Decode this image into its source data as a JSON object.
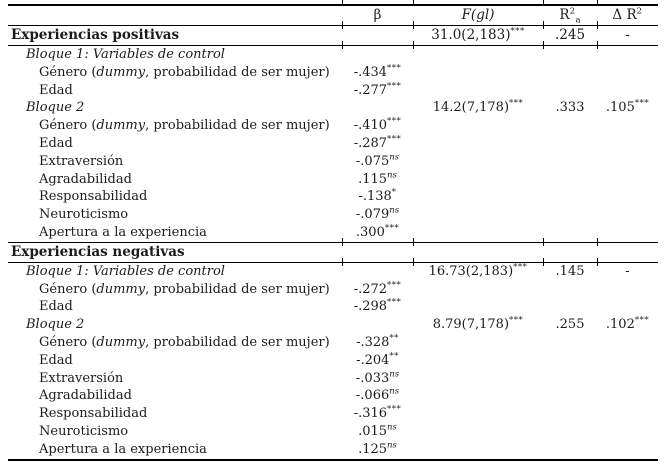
{
  "header": {
    "beta": "β",
    "f": "F(gl)",
    "r2_base": "R",
    "r2_sup": "2",
    "r2_sub": "a",
    "dr2_base": "Δ R",
    "dr2_sup": "2"
  },
  "rows": [
    {
      "type": "section",
      "label_pre": "Experiencias positivas",
      "f": "31.0(2,183)",
      "f_sup": "***",
      "r2": ".245",
      "dr2": "-"
    },
    {
      "type": "block",
      "label_pre": "Bloque 1: Variables de control"
    },
    {
      "type": "var",
      "label_pre": "Género (",
      "label_it": "dummy",
      "label_post": ", probabilidad de ser mujer)",
      "beta": "-.434",
      "beta_sup": "***"
    },
    {
      "type": "var",
      "label_pre": "Edad",
      "beta": "-.277",
      "beta_sup": "***"
    },
    {
      "type": "block",
      "label_pre": "Bloque 2",
      "f": "14.2(7,178)",
      "f_sup": "***",
      "r2": ".333",
      "dr2": ".105",
      "dr2_sup": "***"
    },
    {
      "type": "var",
      "label_pre": "Género (",
      "label_it": "dummy",
      "label_post": ", probabilidad de ser mujer)",
      "beta": "-.410",
      "beta_sup": "***"
    },
    {
      "type": "var",
      "label_pre": "Edad",
      "beta": "-.287",
      "beta_sup": "***"
    },
    {
      "type": "var",
      "label_pre": "Extraversión",
      "beta": "-.075",
      "beta_sup": "ns"
    },
    {
      "type": "var",
      "label_pre": "Agradabilidad",
      "beta": ".115",
      "beta_sup": "ns"
    },
    {
      "type": "var",
      "label_pre": "Responsabilidad",
      "beta": "-.138",
      "beta_sup": "*"
    },
    {
      "type": "var",
      "label_pre": "Neuroticismo",
      "beta": "-.079",
      "beta_sup": "ns"
    },
    {
      "type": "var",
      "label_pre": "Apertura a la experiencia",
      "beta": ".300",
      "beta_sup": "***"
    },
    {
      "type": "section",
      "label_pre": "Experiencias negativas"
    },
    {
      "type": "block",
      "label_pre": "Bloque 1: Variables de control",
      "f": "16.73(2,183)",
      "f_sup": "***",
      "r2": ".145",
      "dr2": "-"
    },
    {
      "type": "var",
      "label_pre": "Género (",
      "label_it": "dummy",
      "label_post": ", probabilidad de ser mujer)",
      "beta": "-.272",
      "beta_sup": "***"
    },
    {
      "type": "var",
      "label_pre": "Edad",
      "beta": "-.298",
      "beta_sup": "***"
    },
    {
      "type": "block",
      "label_pre": "Bloque 2",
      "f": "8.79(7,178)",
      "f_sup": "***",
      "r2": ".255",
      "dr2": ".102",
      "dr2_sup": "***"
    },
    {
      "type": "var",
      "label_pre": "Género (",
      "label_it": "dummy",
      "label_post": ", probabilidad de ser mujer)",
      "beta": "-.328",
      "beta_sup": "**"
    },
    {
      "type": "var",
      "label_pre": "Edad",
      "beta": "-.204",
      "beta_sup": "**"
    },
    {
      "type": "var",
      "label_pre": "Extraversión",
      "beta": "-.033",
      "beta_sup": "ns"
    },
    {
      "type": "var",
      "label_pre": "Agradabilidad",
      "beta": "-.066",
      "beta_sup": "ns"
    },
    {
      "type": "var",
      "label_pre": "Responsabilidad",
      "beta": "-.316",
      "beta_sup": "***"
    },
    {
      "type": "var",
      "label_pre": "Neuroticismo",
      "beta": ".015",
      "beta_sup": "ns"
    },
    {
      "type": "var",
      "label_pre": "Apertura a la experiencia",
      "beta": ".125",
      "beta_sup": "ns"
    }
  ]
}
